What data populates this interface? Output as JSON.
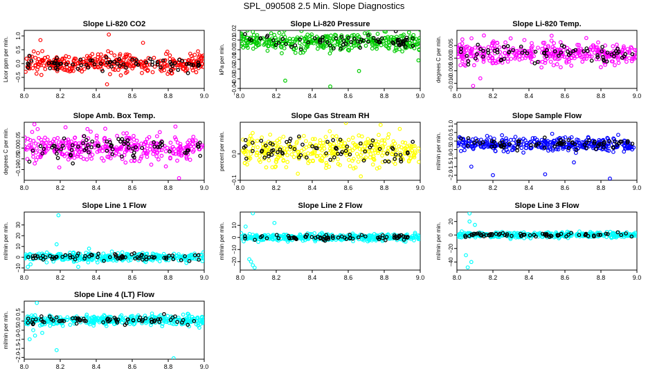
{
  "title": "SPL_090508  2.5 Min. Slope Diagnostics",
  "colors": {
    "black": "#000000"
  },
  "chart_data": [
    {
      "type": "scatter",
      "title": "Slope Li-820 CO2",
      "ylabel": "Licor ppm per min.",
      "xlim": [
        8.0,
        9.0
      ],
      "ylim": [
        -0.9,
        1.2
      ],
      "xticks": [
        8.0,
        8.2,
        8.4,
        8.6,
        8.8,
        9.0
      ],
      "yticks": [
        -0.5,
        0.0,
        0.5,
        1.0
      ],
      "color": "#ff0000",
      "dense": {
        "center": 0.0,
        "spread": 0.3
      },
      "outliers": [
        [
          8.47,
          1.05
        ],
        [
          8.46,
          -0.75
        ],
        [
          8.66,
          0.75
        ],
        [
          8.09,
          0.85
        ]
      ]
    },
    {
      "type": "scatter",
      "title": "Slope Li-820 Pressure",
      "ylabel": "kPa per min.",
      "xlim": [
        8.0,
        9.0
      ],
      "ylim": [
        -0.04,
        0.02
      ],
      "xticks": [
        8.0,
        8.2,
        8.4,
        8.6,
        8.8,
        9.0
      ],
      "yticks": [
        -0.04,
        -0.03,
        -0.02,
        -0.01,
        0.0,
        0.01,
        0.02
      ],
      "color": "#00cc00",
      "dense": {
        "center": 0.008,
        "spread": 0.008
      },
      "outliers": [
        [
          8.04,
          0.02
        ],
        [
          8.5,
          -0.038
        ],
        [
          8.66,
          -0.022
        ],
        [
          8.25,
          -0.032
        ],
        [
          8.99,
          -0.011
        ]
      ]
    },
    {
      "type": "scatter",
      "title": "Slope Li-820 Temp.",
      "ylabel": "degrees C per min.",
      "xlim": [
        8.0,
        9.0
      ],
      "ylim": [
        -0.012,
        0.011
      ],
      "xticks": [
        8.0,
        8.2,
        8.4,
        8.6,
        8.8,
        9.0
      ],
      "yticks": [
        -0.01,
        -0.005,
        0.0,
        0.005
      ],
      "color": "#ff00ff",
      "dense": {
        "center": 0.002,
        "spread": 0.004
      },
      "outliers": [
        [
          8.15,
          0.009
        ],
        [
          8.09,
          -0.011
        ],
        [
          8.13,
          -0.008
        ]
      ]
    },
    {
      "type": "scatter",
      "title": "Slope Amb. Box Temp.",
      "ylabel": "degrees C per min.",
      "xlim": [
        8.0,
        9.0
      ],
      "ylim": [
        -0.15,
        0.12
      ],
      "xticks": [
        8.0,
        8.2,
        8.4,
        8.6,
        8.8,
        9.0
      ],
      "yticks": [
        -0.1,
        -0.05,
        0.0,
        0.05
      ],
      "color": "#ff00ff",
      "dense": {
        "center": 0.0,
        "spread": 0.06
      },
      "outliers": [
        [
          8.84,
          0.1
        ],
        [
          8.86,
          -0.14
        ],
        [
          8.45,
          0.09
        ]
      ]
    },
    {
      "type": "scatter",
      "title": "Slope Gas Stream RH",
      "ylabel": "percent per min.",
      "xlim": [
        8.0,
        9.0
      ],
      "ylim": [
        -0.1,
        0.12
      ],
      "xticks": [
        8.0,
        8.2,
        8.4,
        8.6,
        8.8,
        9.0
      ],
      "yticks": [
        -0.1,
        0.0
      ],
      "color": "#ffff00",
      "dense": {
        "center": 0.01,
        "spread": 0.05
      },
      "outliers": [
        [
          8.78,
          0.11
        ],
        [
          8.67,
          -0.085
        ],
        [
          8.32,
          -0.075
        ]
      ]
    },
    {
      "type": "scatter",
      "title": "Slope Sample Flow",
      "ylabel": "ml/min per min.",
      "xlim": [
        8.0,
        9.0
      ],
      "ylim": [
        -2.3,
        1.1
      ],
      "xticks": [
        8.0,
        8.2,
        8.4,
        8.6,
        8.8,
        9.0
      ],
      "yticks": [
        -2.0,
        -1.5,
        -1.0,
        -0.5,
        0.0,
        0.5,
        1.0
      ],
      "color": "#0000ff",
      "dense": {
        "center": -0.2,
        "spread": 0.35
      },
      "outliers": [
        [
          8.2,
          -2.0
        ],
        [
          8.49,
          -1.95
        ],
        [
          8.85,
          -2.2
        ],
        [
          8.08,
          -1.5
        ],
        [
          8.65,
          -1.25
        ]
      ]
    },
    {
      "type": "scatter",
      "title": "Slope Line 1 Flow",
      "ylabel": "ml/min per min.",
      "xlim": [
        8.0,
        9.0
      ],
      "ylim": [
        -12,
        42
      ],
      "xticks": [
        8.0,
        8.2,
        8.4,
        8.6,
        8.8,
        9.0
      ],
      "yticks": [
        -10,
        0,
        10,
        20,
        30
      ],
      "color": "#00ffff",
      "dense": {
        "center": 0.0,
        "spread": 3.5
      },
      "outliers": [
        [
          8.19,
          39
        ],
        [
          8.18,
          12
        ],
        [
          8.36,
          8
        ],
        [
          8.3,
          -9
        ],
        [
          8.02,
          -9
        ]
      ]
    },
    {
      "type": "scatter",
      "title": "Slope Line 2 Flow",
      "ylabel": "ml/min per min.",
      "xlim": [
        8.0,
        9.0
      ],
      "ylim": [
        -27,
        21
      ],
      "xticks": [
        8.0,
        8.2,
        8.4,
        8.6,
        8.8,
        9.0
      ],
      "yticks": [
        -20,
        -10,
        0,
        10
      ],
      "color": "#00ffff",
      "dense": {
        "center": 0.0,
        "spread": 2.5
      },
      "outliers": [
        [
          8.07,
          20
        ],
        [
          8.05,
          -18
        ],
        [
          8.06,
          -20
        ],
        [
          8.07,
          -23
        ],
        [
          8.08,
          -25
        ],
        [
          8.19,
          12
        ],
        [
          8.03,
          9
        ]
      ]
    },
    {
      "type": "scatter",
      "title": "Slope Line 3 Flow",
      "ylabel": "ml/min per min.",
      "xlim": [
        8.0,
        9.0
      ],
      "ylim": [
        -52,
        34
      ],
      "xticks": [
        8.0,
        8.2,
        8.4,
        8.6,
        8.8,
        9.0
      ],
      "yticks": [
        -40,
        -20,
        0,
        20
      ],
      "color": "#00ffff",
      "dense": {
        "center": 0.0,
        "spread": 3.5
      },
      "outliers": [
        [
          8.07,
          32
        ],
        [
          8.06,
          -48
        ],
        [
          8.08,
          -40
        ],
        [
          8.05,
          -30
        ],
        [
          8.07,
          20
        ],
        [
          8.1,
          15
        ]
      ]
    },
    {
      "type": "scatter",
      "title": "Slope Line 4 (LT) Flow",
      "ylabel": "ml/min per min.",
      "xlim": [
        8.0,
        9.0
      ],
      "ylim": [
        -2.1,
        1.1
      ],
      "xticks": [
        8.0,
        8.2,
        8.4,
        8.6,
        8.8,
        9.0
      ],
      "yticks": [
        -2.0,
        -1.5,
        -1.0,
        -0.5,
        0.0,
        0.5
      ],
      "color": "#00ffff",
      "dense": {
        "center": 0.05,
        "spread": 0.25
      },
      "outliers": [
        [
          8.07,
          1.0
        ],
        [
          8.03,
          -1.0
        ],
        [
          8.06,
          -0.8
        ],
        [
          8.18,
          -1.6
        ],
        [
          8.83,
          -2.05
        ],
        [
          8.05,
          -0.5
        ],
        [
          8.1,
          -0.65
        ]
      ]
    }
  ]
}
